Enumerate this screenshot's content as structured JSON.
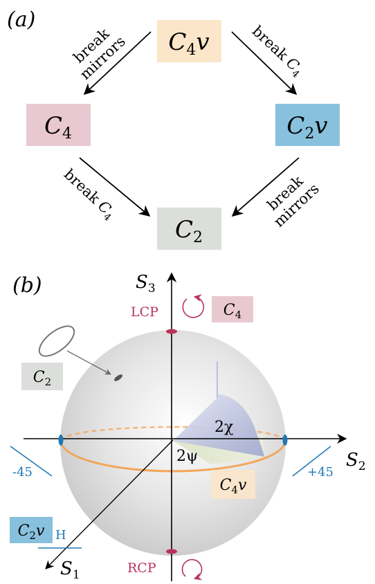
{
  "panel_a": {
    "label": "(a)",
    "nodes": {
      "c4v": {
        "main": "C",
        "sub": "4",
        "suffix": "v",
        "color": "#fbe6c9"
      },
      "c4": {
        "main": "C",
        "sub": "4",
        "suffix": "",
        "color": "#e9c9d1"
      },
      "c2v": {
        "main": "C",
        "sub": "2",
        "suffix": "v",
        "color": "#88c1dd"
      },
      "c2": {
        "main": "C",
        "sub": "2",
        "suffix": "",
        "color": "#dcdedb"
      }
    },
    "edges": {
      "top_left": {
        "line1": "break",
        "line2": "mirrors"
      },
      "top_right": {
        "line1": "break",
        "sym": "C",
        "sub": "4"
      },
      "bottom_left": {
        "line1": "break",
        "sym": "C",
        "sub": "4"
      },
      "bottom_right": {
        "line1": "break",
        "line2": "mirrors"
      }
    }
  },
  "panel_b": {
    "label": "(b)",
    "axes": {
      "s1": {
        "main": "S",
        "sub": "1"
      },
      "s2": {
        "main": "S",
        "sub": "2"
      },
      "s3": {
        "main": "S",
        "sub": "3"
      }
    },
    "poles": {
      "north": "LCP",
      "south": "RCP"
    },
    "equator_labels": {
      "left": "-45",
      "right": "+45",
      "front": "H"
    },
    "angles": {
      "chi": "2χ",
      "psi": "2ψ"
    },
    "tags": {
      "c4": {
        "main": "C",
        "sub": "4",
        "suffix": "",
        "color": "#e9c9d1"
      },
      "c2": {
        "main": "C",
        "sub": "2",
        "suffix": "",
        "color": "#dcdedb"
      },
      "c4v": {
        "main": "C",
        "sub": "4",
        "suffix": "v",
        "color": "#fbe6c9"
      },
      "c2v": {
        "main": "C",
        "sub": "2",
        "suffix": "v",
        "color": "#88c1dd"
      }
    },
    "colors": {
      "pole_marker": "#b8345a",
      "equator_marker": "#1f78b4",
      "equator_ring": "#f2a65a",
      "linear_label": "#1f78b4"
    }
  }
}
